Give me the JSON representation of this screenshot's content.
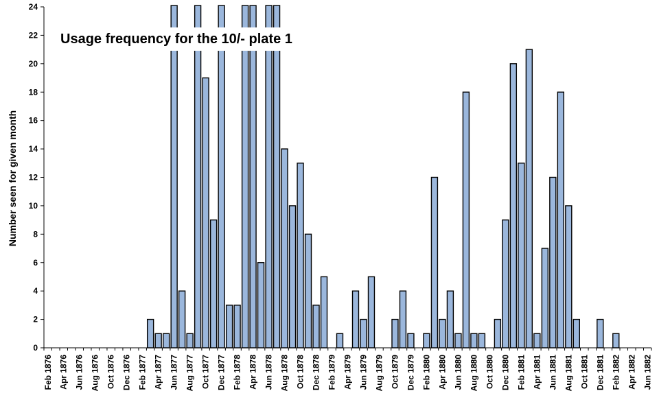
{
  "chart_data": {
    "type": "bar",
    "title": "Usage frequency for the 10/- plate 1",
    "xlabel": "",
    "ylabel": "Number seen for given month",
    "ylim": [
      0,
      24
    ],
    "yticks": [
      0,
      2,
      4,
      6,
      8,
      10,
      12,
      14,
      16,
      18,
      20,
      22,
      24
    ],
    "grid": false,
    "legend": "none",
    "bar_color": "#9bb7dc",
    "bar_edge_color": "#000000",
    "categories": [
      "Feb 1876",
      "Mar 1876",
      "Apr 1876",
      "May 1876",
      "Jun 1876",
      "Jul 1876",
      "Aug 1876",
      "Sep 1876",
      "Oct 1876",
      "Nov 1876",
      "Dec 1876",
      "Jan 1877",
      "Feb 1877",
      "Mar 1877",
      "Apr 1877",
      "May 1877",
      "Jun 1877",
      "Jul 1877",
      "Aug 1877",
      "Sep 1877",
      "Oct 1877",
      "Nov 1877",
      "Dec 1877",
      "Jan 1878",
      "Feb 1878",
      "Mar 1878",
      "Apr 1878",
      "May 1878",
      "Jun 1878",
      "Jul 1878",
      "Aug 1878",
      "Sep 1878",
      "Oct 1878",
      "Nov 1878",
      "Dec 1878",
      "Jan 1879",
      "Feb 1879",
      "Mar 1879",
      "Apr 1879",
      "May 1879",
      "Jun 1879",
      "Jul 1879",
      "Aug 1879",
      "Sep 1879",
      "Oct 1879",
      "Nov 1879",
      "Dec 1879",
      "Jan 1880",
      "Feb 1880",
      "Mar 1880",
      "Apr 1880",
      "May 1880",
      "Jun 1880",
      "Jul 1880",
      "Aug 1880",
      "Sep 1880",
      "Oct 1880",
      "Nov 1880",
      "Dec 1880",
      "Jan 1881",
      "Feb 1881",
      "Mar 1881",
      "Apr 1881",
      "May 1881",
      "Jun 1881",
      "Jul 1881",
      "Aug 1881",
      "Sep 1881",
      "Oct 1881",
      "Nov 1881",
      "Dec 1881",
      "Jan 1882",
      "Feb 1882",
      "Mar 1882",
      "Apr 1882",
      "May 1882",
      "Jun 1882"
    ],
    "tick_labels": [
      "Feb 1876",
      "Apr 1876",
      "Jun 1876",
      "Aug 1876",
      "Oct 1876",
      "Dec 1876",
      "Feb 1877",
      "Apr 1877",
      "Jun 1877",
      "Aug 1877",
      "Oct 1877",
      "Dec 1877",
      "Feb 1878",
      "Apr 1878",
      "Jun 1878",
      "Aug 1878",
      "Oct 1878",
      "Dec 1878",
      "Feb 1879",
      "Apr 1879",
      "Jun 1879",
      "Aug 1879",
      "Oct 1879",
      "Dec 1879",
      "Feb 1880",
      "Apr 1880",
      "Jun 1880",
      "Aug 1880",
      "Oct 1880",
      "Dec 1880",
      "Feb 1881",
      "Apr 1881",
      "Jun 1881",
      "Aug 1881",
      "Oct 1881",
      "Dec 1881",
      "Feb 1882",
      "Apr 1882",
      "Jun 1882"
    ],
    "values": [
      0,
      0,
      0,
      0,
      0,
      0,
      0,
      0,
      0,
      0,
      0,
      0,
      0,
      2,
      1,
      1,
      25,
      4,
      1,
      25,
      19,
      9,
      25,
      3,
      3,
      25,
      25,
      6,
      25,
      25,
      14,
      10,
      13,
      8,
      3,
      5,
      0,
      1,
      0,
      4,
      2,
      5,
      0,
      0,
      2,
      4,
      1,
      0,
      1,
      12,
      2,
      4,
      1,
      18,
      1,
      1,
      0,
      2,
      9,
      20,
      13,
      21,
      1,
      7,
      12,
      18,
      10,
      2,
      0,
      0,
      2,
      0,
      1,
      0,
      0,
      0,
      0
    ],
    "clipped_above_ylim": [
      "Jun 1877",
      "Sep 1877",
      "Dec 1877",
      "Mar 1878",
      "Apr 1878",
      "Jun 1878",
      "Jul 1878"
    ]
  }
}
